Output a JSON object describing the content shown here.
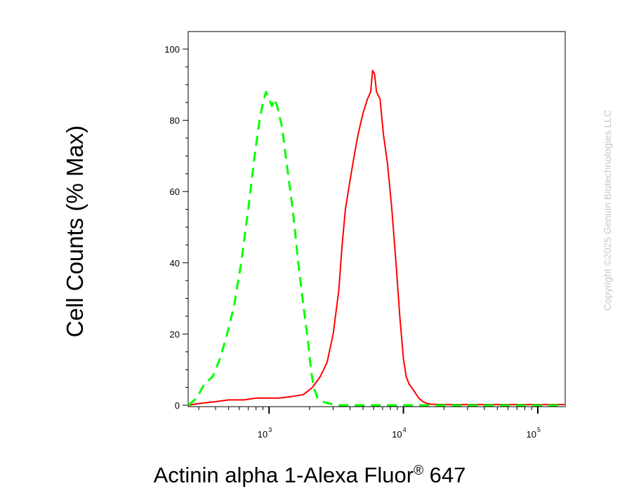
{
  "chart_data": {
    "type": "line",
    "xlabel": "Actinin alpha 1-Alexa Fluor",
    "xlabel_superscript": "®",
    "xlabel_suffix": " 647",
    "ylabel": "Cell Counts (% Max)",
    "x_scale": "log",
    "xlim": [
      250,
      160000
    ],
    "ylim": [
      0,
      105
    ],
    "y_ticks": [
      0,
      20,
      40,
      60,
      80,
      100
    ],
    "x_ticks": [
      {
        "value": 1000,
        "base": "10",
        "exp": "3"
      },
      {
        "value": 10000,
        "base": "10",
        "exp": "4"
      },
      {
        "value": 100000,
        "base": "10",
        "exp": "5"
      }
    ],
    "grid": false,
    "legend": "none",
    "series": [
      {
        "color": "#ff0000",
        "style": "solid",
        "points": [
          [
            250,
            0
          ],
          [
            300,
            0.5
          ],
          [
            400,
            1
          ],
          [
            500,
            1.5
          ],
          [
            650,
            1.5
          ],
          [
            800,
            2
          ],
          [
            1000,
            2
          ],
          [
            1200,
            2
          ],
          [
            1500,
            2.5
          ],
          [
            1800,
            3
          ],
          [
            2100,
            5
          ],
          [
            2400,
            8
          ],
          [
            2700,
            12
          ],
          [
            3000,
            20
          ],
          [
            3300,
            32
          ],
          [
            3500,
            45
          ],
          [
            3700,
            55
          ],
          [
            4000,
            63
          ],
          [
            4300,
            70
          ],
          [
            4600,
            76
          ],
          [
            5000,
            82
          ],
          [
            5400,
            86
          ],
          [
            5700,
            88
          ],
          [
            5900,
            94
          ],
          [
            6100,
            93
          ],
          [
            6300,
            88
          ],
          [
            6700,
            86
          ],
          [
            7100,
            76
          ],
          [
            7600,
            68
          ],
          [
            8200,
            55
          ],
          [
            8800,
            40
          ],
          [
            9400,
            25
          ],
          [
            10000,
            13
          ],
          [
            10500,
            8
          ],
          [
            11000,
            6
          ],
          [
            12000,
            4
          ],
          [
            13000,
            2
          ],
          [
            14000,
            1
          ],
          [
            15000,
            0.5
          ],
          [
            16000,
            0.3
          ],
          [
            20000,
            0.2
          ],
          [
            50000,
            0.2
          ],
          [
            160000,
            0.2
          ]
        ]
      },
      {
        "color": "#00ff00",
        "style": "dashed",
        "points": [
          [
            250,
            0
          ],
          [
            290,
            2
          ],
          [
            330,
            6
          ],
          [
            380,
            8
          ],
          [
            430,
            13
          ],
          [
            480,
            19
          ],
          [
            550,
            28
          ],
          [
            620,
            40
          ],
          [
            700,
            55
          ],
          [
            780,
            70
          ],
          [
            850,
            80
          ],
          [
            900,
            85
          ],
          [
            950,
            88
          ],
          [
            1000,
            86
          ],
          [
            1050,
            84
          ],
          [
            1100,
            86
          ],
          [
            1150,
            84
          ],
          [
            1250,
            78
          ],
          [
            1350,
            68
          ],
          [
            1500,
            55
          ],
          [
            1650,
            40
          ],
          [
            1800,
            28
          ],
          [
            1950,
            18
          ],
          [
            2050,
            10
          ],
          [
            2150,
            5
          ],
          [
            2300,
            2
          ],
          [
            2500,
            1
          ],
          [
            2800,
            0.5
          ],
          [
            3200,
            0
          ],
          [
            10000,
            0
          ],
          [
            160000,
            0
          ]
        ]
      }
    ]
  },
  "copyright": "Copyright ©2025 Genuin Biotechnologies LLC"
}
